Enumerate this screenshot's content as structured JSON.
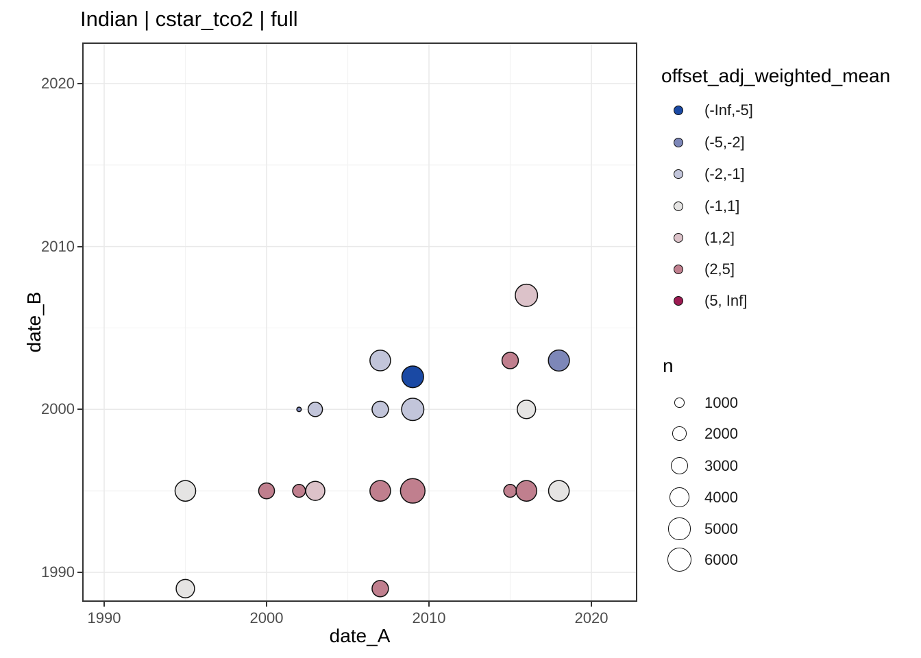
{
  "title": "Indian | cstar_tco2 | full",
  "chart_data": {
    "type": "scatter",
    "title": "Indian | cstar_tco2 | full",
    "xlabel": "date_A",
    "ylabel": "date_B",
    "xlim": [
      1988.6,
      2022.8
    ],
    "ylim": [
      1988.2,
      2022.5
    ],
    "grid": true,
    "legend_position": "right",
    "x_ticks": [
      "1990",
      "2000",
      "2010",
      "2020"
    ],
    "y_ticks": [
      "1990",
      "2000",
      "2010",
      "2020"
    ],
    "x_tick_years": [
      1990,
      2000,
      2010,
      2020
    ],
    "y_tick_years": [
      1990,
      2000,
      2010,
      2020
    ],
    "x_minor_years": [
      1995,
      2005,
      2015
    ],
    "y_minor_years": [
      1995,
      2005,
      2015
    ],
    "panel_colors": {
      "background": "#ffffff",
      "border": "#333333",
      "grid_major": "#e9e9e9",
      "grid_minor": "#f3f3f3",
      "point_stroke": "#101010",
      "tick_text": "#4d4d4d"
    },
    "color_legend": {
      "title": "offset_adj_weighted_mean",
      "entries": [
        {
          "label": "(-Inf,-5]",
          "color": "#1a49a4"
        },
        {
          "label": "(-5,-2]",
          "color": "#7d87b8"
        },
        {
          "label": "(-2,-1]",
          "color": "#c2c5da"
        },
        {
          "label": "(-1,1]",
          "color": "#e5e4e3"
        },
        {
          "label": "(1,2]",
          "color": "#dcc2c9"
        },
        {
          "label": "(2,5]",
          "color": "#c07f8e"
        },
        {
          "label": "(5, Inf]",
          "color": "#9c1b52"
        }
      ]
    },
    "size_legend": {
      "title": "n",
      "entries": [
        "1000",
        "2000",
        "3000",
        "4000",
        "5000",
        "6000"
      ],
      "values": [
        1000,
        2000,
        3000,
        4000,
        5000,
        6000
      ]
    },
    "points": [
      {
        "x": 1995,
        "y": 1989,
        "bin": "(-1,1]",
        "n": 4000
      },
      {
        "x": 1995,
        "y": 1995,
        "bin": "(-1,1]",
        "n": 5000
      },
      {
        "x": 2000,
        "y": 1995,
        "bin": "(2,5]",
        "n": 3000
      },
      {
        "x": 2002,
        "y": 1995,
        "bin": "(2,5]",
        "n": 2000
      },
      {
        "x": 2002,
        "y": 2000,
        "bin": "(-5,-2]",
        "n": 300
      },
      {
        "x": 2003,
        "y": 1995,
        "bin": "(1,2]",
        "n": 4300
      },
      {
        "x": 2003,
        "y": 2000,
        "bin": "(-2,-1]",
        "n": 2500
      },
      {
        "x": 2007,
        "y": 1989,
        "bin": "(2,5]",
        "n": 3200
      },
      {
        "x": 2007,
        "y": 1995,
        "bin": "(2,5]",
        "n": 5000
      },
      {
        "x": 2007,
        "y": 2000,
        "bin": "(-2,-1]",
        "n": 3200
      },
      {
        "x": 2007,
        "y": 2003,
        "bin": "(-2,-1]",
        "n": 5000
      },
      {
        "x": 2009,
        "y": 1995,
        "bin": "(2,5]",
        "n": 7000
      },
      {
        "x": 2009,
        "y": 2000,
        "bin": "(-2,-1]",
        "n": 5800
      },
      {
        "x": 2009,
        "y": 2002,
        "bin": "(-Inf,-5]",
        "n": 5500
      },
      {
        "x": 2015,
        "y": 1995,
        "bin": "(2,5]",
        "n": 2000
      },
      {
        "x": 2015,
        "y": 2003,
        "bin": "(2,5]",
        "n": 3200
      },
      {
        "x": 2016,
        "y": 1995,
        "bin": "(2,5]",
        "n": 5000
      },
      {
        "x": 2016,
        "y": 2000,
        "bin": "(-1,1]",
        "n": 4000
      },
      {
        "x": 2016,
        "y": 2007,
        "bin": "(1,2]",
        "n": 5800
      },
      {
        "x": 2018,
        "y": 1995,
        "bin": "(-1,1]",
        "n": 5000
      },
      {
        "x": 2018,
        "y": 2003,
        "bin": "(-5,-2]",
        "n": 5200
      }
    ]
  }
}
